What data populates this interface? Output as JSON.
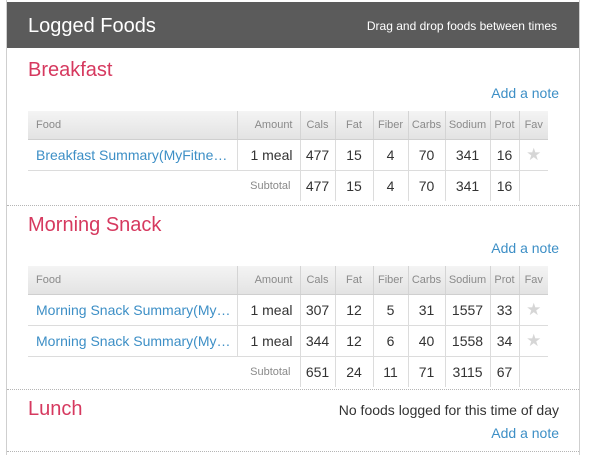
{
  "header": {
    "title": "Logged Foods",
    "hint": "Drag and drop foods between times"
  },
  "columns": {
    "food": "Food",
    "amount": "Amount",
    "cals": "Cals",
    "fat": "Fat",
    "fiber": "Fiber",
    "carbs": "Carbs",
    "sodium": "Sodium",
    "prot": "Prot",
    "fav": "Fav"
  },
  "subtotal_label": "Subtotal",
  "add_note_label": "Add a note",
  "icons": {
    "favorite": "star-icon"
  },
  "colors": {
    "header_bg": "#5b5b5b",
    "meal_title": "#d6395f",
    "link": "#3d8fc6"
  },
  "breakfast": {
    "title": "Breakfast",
    "rows": [
      {
        "food": "Breakfast Summary(MyFitne…",
        "amount": "1 meal",
        "cals": "477",
        "fat": "15",
        "fiber": "4",
        "carbs": "70",
        "sodium": "341",
        "prot": "16"
      }
    ],
    "subtotal": {
      "cals": "477",
      "fat": "15",
      "fiber": "4",
      "carbs": "70",
      "sodium": "341",
      "prot": "16"
    }
  },
  "morning_snack": {
    "title": "Morning Snack",
    "rows": [
      {
        "food": "Morning Snack Summary(My…",
        "amount": "1 meal",
        "cals": "307",
        "fat": "12",
        "fiber": "5",
        "carbs": "31",
        "sodium": "1557",
        "prot": "33"
      },
      {
        "food": "Morning Snack Summary(My…",
        "amount": "1 meal",
        "cals": "344",
        "fat": "12",
        "fiber": "6",
        "carbs": "40",
        "sodium": "1558",
        "prot": "34"
      }
    ],
    "subtotal": {
      "cals": "651",
      "fat": "24",
      "fiber": "11",
      "carbs": "71",
      "sodium": "3115",
      "prot": "67"
    }
  },
  "lunch": {
    "title": "Lunch",
    "empty_message": "No foods logged for this time of day"
  }
}
